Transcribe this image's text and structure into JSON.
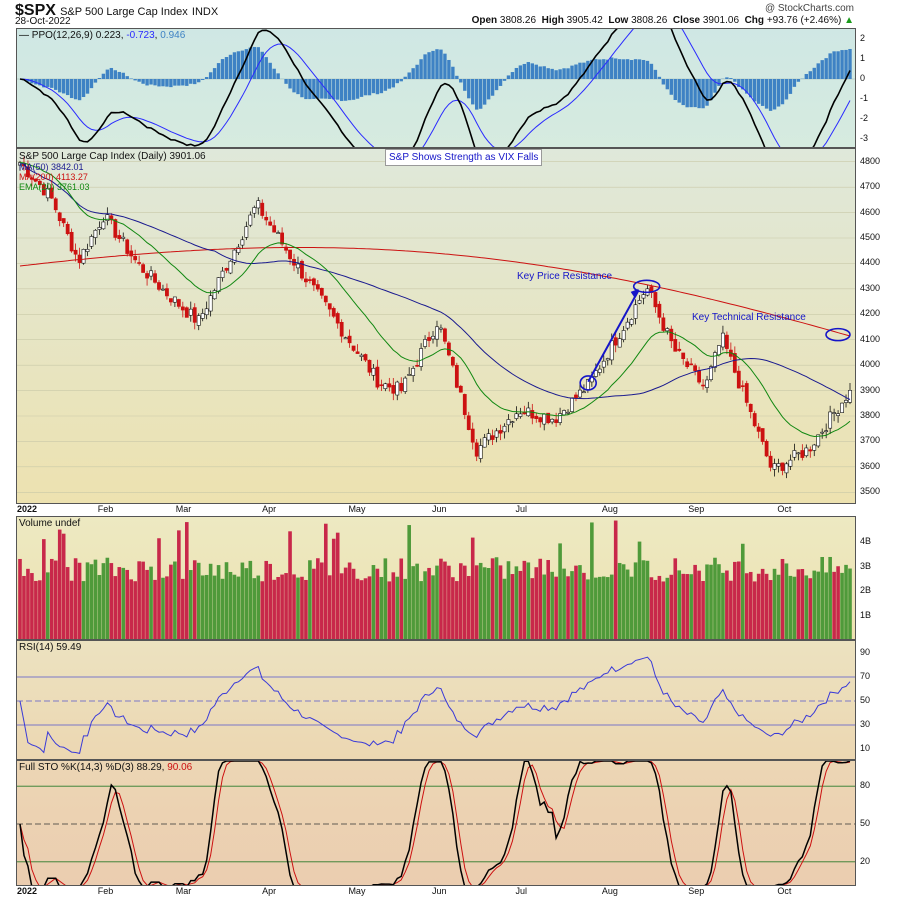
{
  "header": {
    "symbol": "$SPX",
    "name": "S&P 500 Large Cap Index",
    "exchange": "INDX",
    "date": "28-Oct-2022",
    "watermark": "@ StockCharts.com",
    "open_label": "Open",
    "open": "3808.26",
    "high_label": "High",
    "high": "3905.42",
    "low_label": "Low",
    "low": "3808.26",
    "close_label": "Close",
    "close": "3901.06",
    "chg_label": "Chg",
    "chg": "+93.76 (+2.46%)",
    "chg_arrow": "▲"
  },
  "ppo": {
    "label_prefix": "PPO(12,26,9)",
    "v1": "0.223",
    "v2": "-0.723",
    "v3": "0.946",
    "color_line": "#000000",
    "color_signal": "#2a2aff",
    "color_hist": "#3e82c4",
    "yticks": [
      "2",
      "1",
      "0",
      "-1",
      "-2",
      "-3"
    ]
  },
  "price": {
    "label": "S&P 500 Large Cap Index (Daily) 3901.06",
    "ma50_label": "MA(50) 3842.01",
    "ma200_label": "MA(200) 4113.27",
    "ema20_label": "EMA(20) 3761.03",
    "annotation_box": "S&P Shows Strength as VIX Falls",
    "annotation_price_res": "Key Price Resistance",
    "annotation_tech_res": "Key Technical Resistance",
    "yticks": [
      "4800",
      "4700",
      "4600",
      "4500",
      "4400",
      "4300",
      "4200",
      "4100",
      "4000",
      "3900",
      "3800",
      "3700",
      "3600",
      "3500"
    ],
    "colors": {
      "up": "#111111",
      "down": "#cc1111",
      "ma50": "#1a1a8f",
      "ma200": "#cc1111",
      "ema20": "#118811",
      "annot": "#1515c8"
    }
  },
  "volume": {
    "label": "Volume undef",
    "yticks": [
      "4B",
      "3B",
      "2B",
      "1B"
    ],
    "colors": {
      "up": "#4f9a3a",
      "down": "#c8284a"
    }
  },
  "rsi": {
    "label": "RSI(14) 59.49",
    "yticks": [
      "90",
      "70",
      "50",
      "30",
      "10"
    ],
    "color": "#3a3ad8"
  },
  "sto": {
    "label_prefix": "Full STO %K(14,3) %D(3)",
    "k": "88.29",
    "d": "90.06",
    "yticks": [
      "80",
      "50",
      "20"
    ],
    "color_k": "#000000",
    "color_d": "#cc1111"
  },
  "xaxis": {
    "labels": [
      "2022",
      "Feb",
      "Mar",
      "Apr",
      "May",
      "Jun",
      "Jul",
      "Aug",
      "Sep",
      "Oct"
    ]
  },
  "chart_data": {
    "type": "candlestick",
    "x_range": [
      "2022-01-03",
      "2022-10-28"
    ],
    "price_ylim": [
      3450,
      4850
    ],
    "price_series": [
      {
        "date": "2022-01-03",
        "close": 4797
      },
      {
        "date": "2022-01-14",
        "close": 4662
      },
      {
        "date": "2022-01-24",
        "close": 4410
      },
      {
        "date": "2022-02-02",
        "close": 4589
      },
      {
        "date": "2022-02-14",
        "close": 4401
      },
      {
        "date": "2022-02-24",
        "close": 4289
      },
      {
        "date": "2022-03-08",
        "close": 4170
      },
      {
        "date": "2022-03-29",
        "close": 4631
      },
      {
        "date": "2022-04-12",
        "close": 4397
      },
      {
        "date": "2022-04-29",
        "close": 4132
      },
      {
        "date": "2022-05-12",
        "close": 3930
      },
      {
        "date": "2022-05-20",
        "close": 3901
      },
      {
        "date": "2022-06-02",
        "close": 4176
      },
      {
        "date": "2022-06-16",
        "close": 3667
      },
      {
        "date": "2022-07-01",
        "close": 3825
      },
      {
        "date": "2022-07-14",
        "close": 3790
      },
      {
        "date": "2022-07-26",
        "close": 3921
      },
      {
        "date": "2022-08-16",
        "close": 4305
      },
      {
        "date": "2022-08-26",
        "close": 4058
      },
      {
        "date": "2022-09-06",
        "close": 3908
      },
      {
        "date": "2022-09-12",
        "close": 4110
      },
      {
        "date": "2022-09-30",
        "close": 3586
      },
      {
        "date": "2022-10-13",
        "close": 3669
      },
      {
        "date": "2022-10-28",
        "close": 3901
      }
    ],
    "ma50_last": 3842.01,
    "ma200_last": 4113.27,
    "ema20_last": 3761.03,
    "ppo": {
      "ylim": [
        -3.5,
        2.5
      ],
      "line_last": 0.223,
      "signal_last": -0.723,
      "hist_last": 0.946
    },
    "volume": {
      "ylim": [
        0,
        5
      ],
      "unit": "B"
    },
    "rsi": {
      "ylim": [
        0,
        100
      ],
      "last": 59.49,
      "levels": [
        70,
        50,
        30
      ]
    },
    "stochastic": {
      "ylim": [
        0,
        100
      ],
      "k_last": 88.29,
      "d_last": 90.06,
      "levels": [
        80,
        50,
        20
      ]
    }
  }
}
